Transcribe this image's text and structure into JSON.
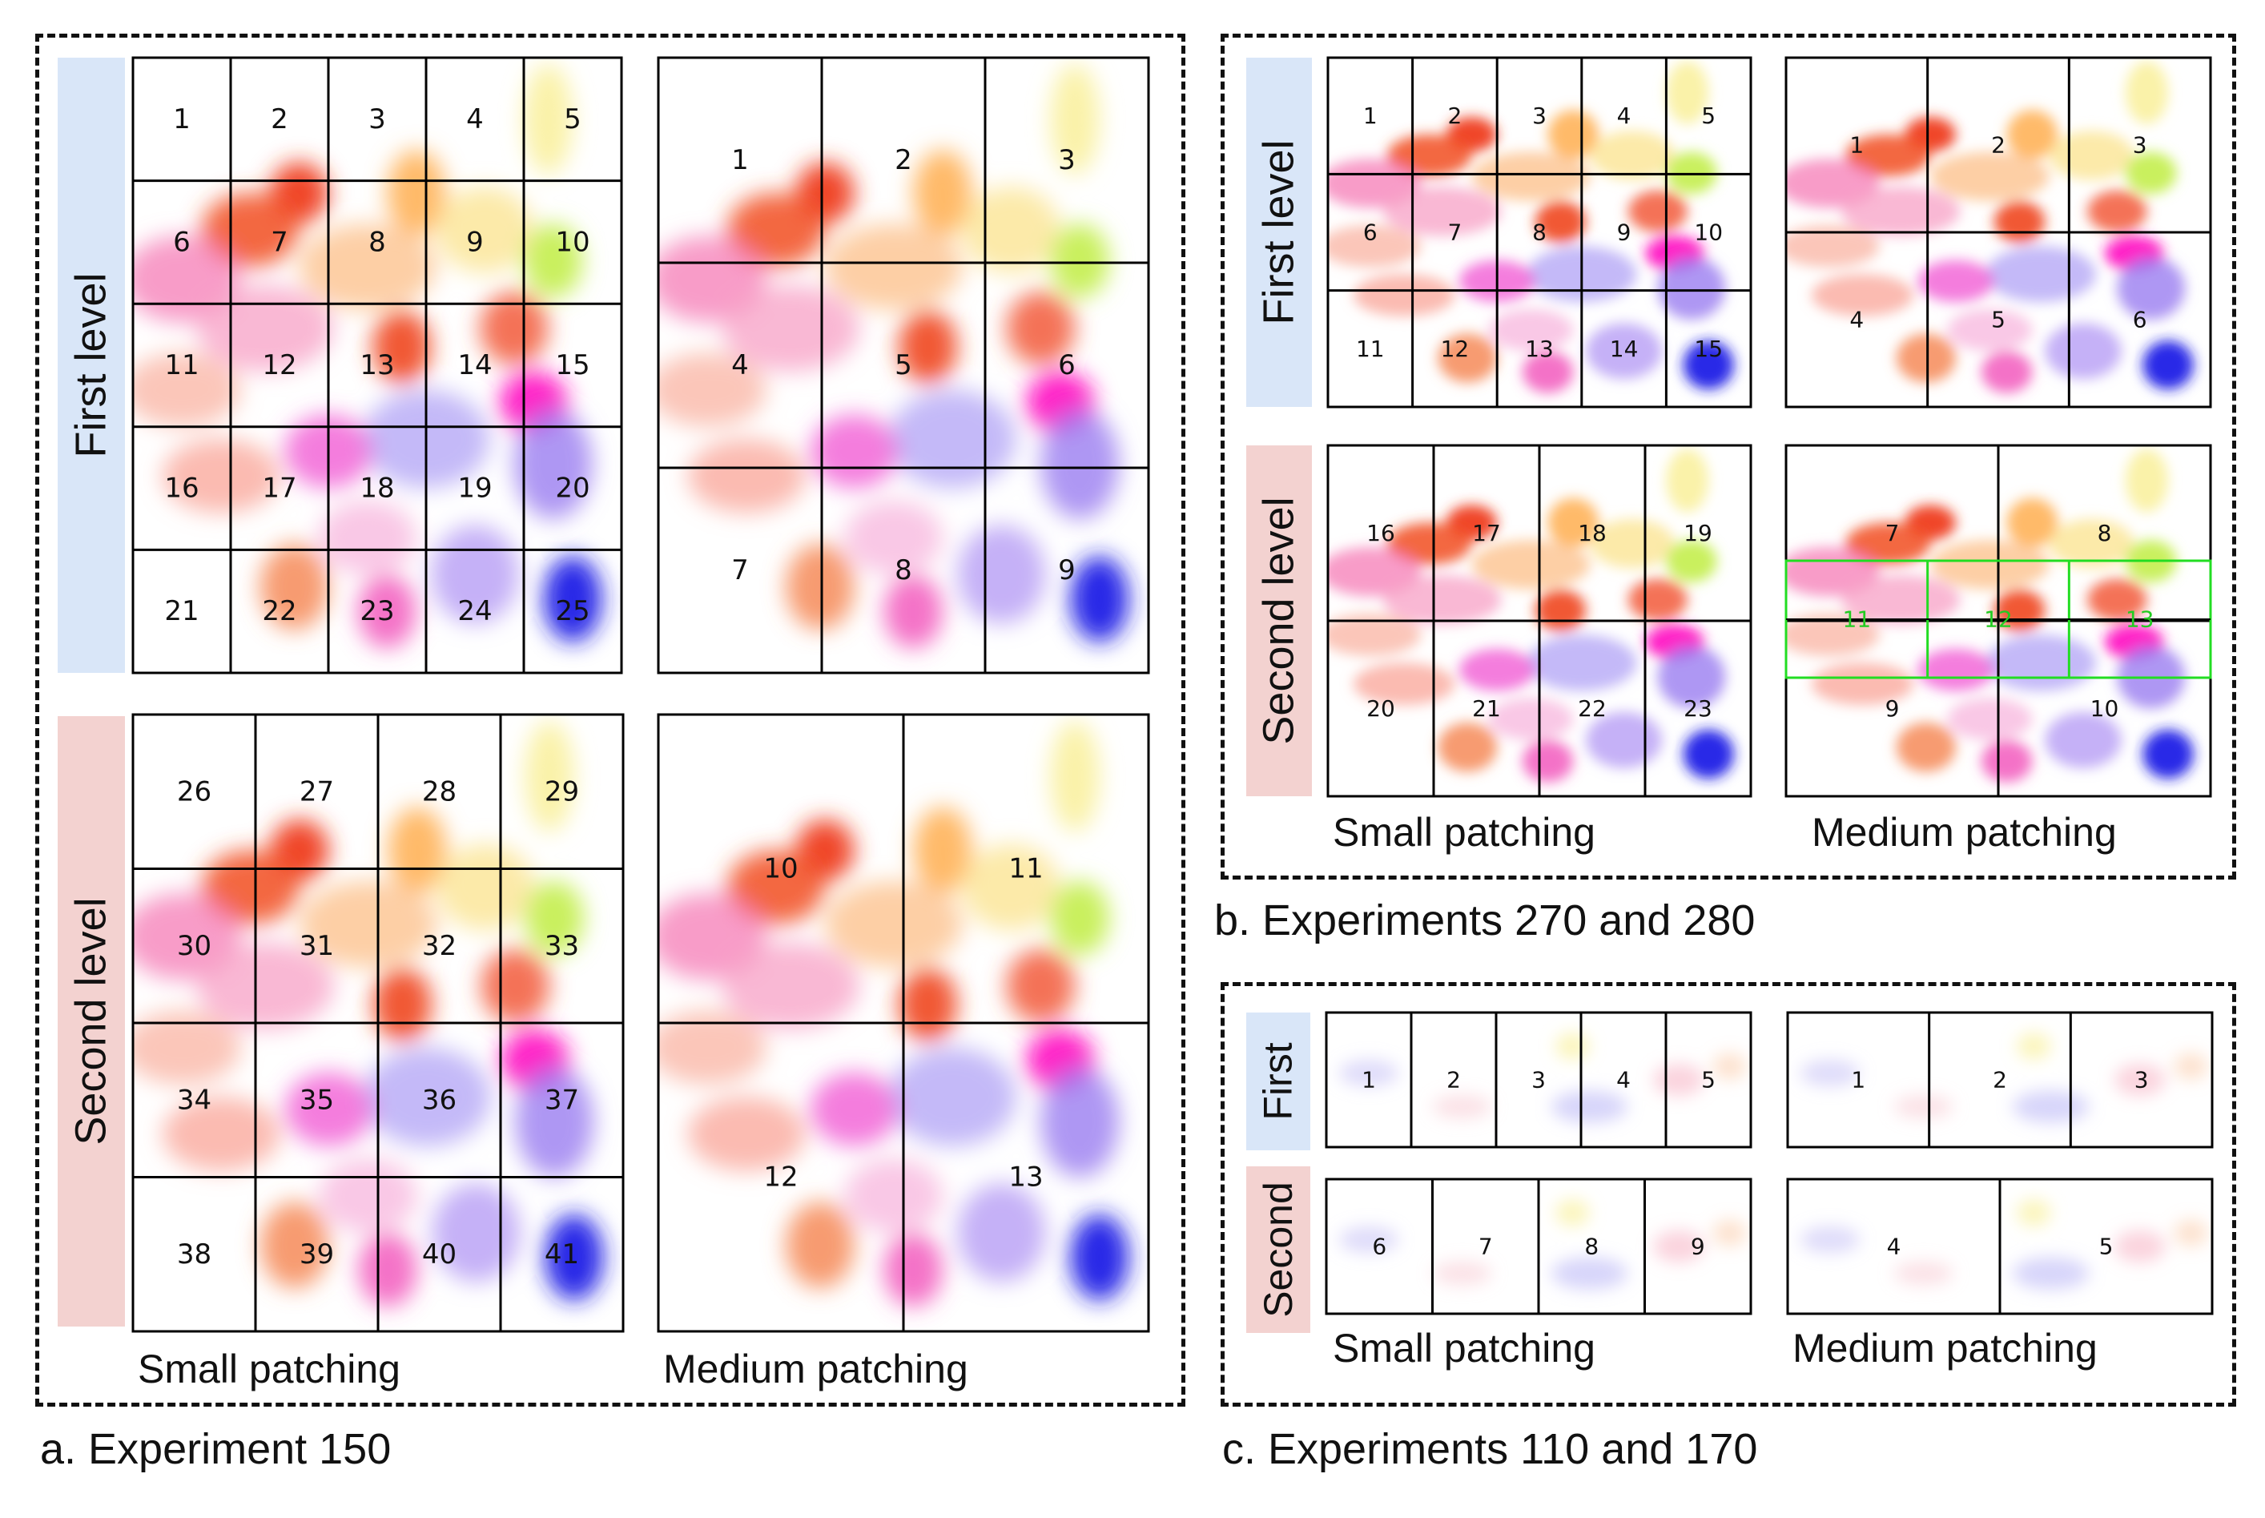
{
  "panels": {
    "a": {
      "caption": "a.  Experiment 150",
      "first_level_label": "First level",
      "second_level_label": "Second level",
      "small_patching_label": "Small patching",
      "medium_patching_label": "Medium patching",
      "small_first_numbers": [
        "1",
        "2",
        "3",
        "4",
        "5",
        "6",
        "7",
        "8",
        "9",
        "10",
        "11",
        "12",
        "13",
        "14",
        "15",
        "16",
        "17",
        "18",
        "19",
        "20",
        "21",
        "22",
        "23",
        "24",
        "25"
      ],
      "medium_first_numbers": [
        "1",
        "2",
        "3",
        "4",
        "5",
        "6",
        "7",
        "8",
        "9"
      ],
      "small_second_numbers": [
        "26",
        "27",
        "28",
        "29",
        "30",
        "31",
        "32",
        "33",
        "34",
        "35",
        "36",
        "37",
        "38",
        "39",
        "40",
        "41"
      ],
      "medium_second_numbers": [
        "10",
        "11",
        "12",
        "13"
      ]
    },
    "b": {
      "caption": "b.  Experiments 270 and 280",
      "first_level_label": "First level",
      "second_level_label": "Second level",
      "small_patching_label": "Small patching",
      "medium_patching_label": "Medium patching",
      "small_first_numbers": [
        "1",
        "2",
        "3",
        "4",
        "5",
        "6",
        "7",
        "8",
        "9",
        "10",
        "11",
        "12",
        "13",
        "14",
        "15"
      ],
      "medium_first_numbers": [
        "1",
        "2",
        "3",
        "4",
        "5",
        "6"
      ],
      "small_second_numbers": [
        "16",
        "17",
        "18",
        "19",
        "20",
        "21",
        "22",
        "23"
      ],
      "medium_second_numbers": [
        "7",
        "8",
        "9",
        "10"
      ],
      "medium_second_highlight_numbers": [
        "11",
        "12",
        "13"
      ]
    },
    "c": {
      "caption": "c.  Experiments 110 and 170",
      "first_level_label": "First",
      "second_level_label": "Second",
      "small_patching_label": "Small patching",
      "medium_patching_label": "Medium patching",
      "small_first_numbers": [
        "1",
        "2",
        "3",
        "4",
        "5"
      ],
      "medium_first_numbers": [
        "1",
        "2",
        "3"
      ],
      "small_second_numbers": [
        "6",
        "7",
        "8",
        "9"
      ],
      "medium_second_numbers": [
        "4",
        "5"
      ]
    }
  },
  "colors": {
    "first_level_bg": "#d9e6f8",
    "second_level_bg": "#f3d2d0",
    "grid_line": "#000000",
    "highlight_grid": "#22dd22",
    "highlight_text": "#22cc22"
  }
}
